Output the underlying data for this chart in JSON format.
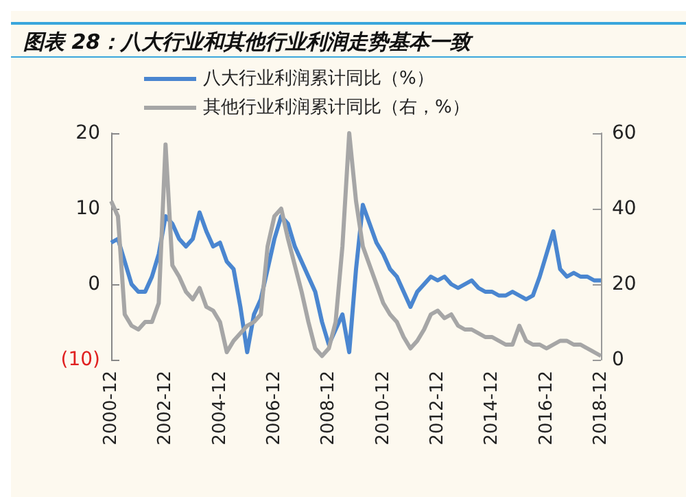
{
  "chart_data": {
    "type": "line",
    "title": "图表 28：八大行业和其他行业利润走势基本一致",
    "categories": [
      "2000-12",
      null,
      null,
      null,
      null,
      null,
      null,
      null,
      "2002-12",
      null,
      null,
      null,
      null,
      null,
      null,
      null,
      "2004-12",
      null,
      null,
      null,
      null,
      null,
      null,
      null,
      "2006-12",
      null,
      null,
      null,
      null,
      null,
      null,
      null,
      "2008-12",
      null,
      null,
      null,
      null,
      null,
      null,
      null,
      "2010-12",
      null,
      null,
      null,
      null,
      null,
      null,
      null,
      "2012-12",
      null,
      null,
      null,
      null,
      null,
      null,
      null,
      "2014-12",
      null,
      null,
      null,
      null,
      null,
      null,
      null,
      "2016-12",
      null,
      null,
      null,
      null,
      null,
      null,
      null,
      "2018-12"
    ],
    "series": [
      {
        "name": "八大行业利润累计同比（%）",
        "color": "#4a86d0",
        "values": [
          5.5,
          6,
          3,
          0,
          -1,
          -1,
          1,
          4,
          9,
          8,
          6,
          5,
          6,
          9.5,
          7,
          5,
          5.5,
          3,
          2,
          -3,
          -9,
          -4,
          -2,
          2,
          6,
          9,
          8,
          5,
          3,
          1,
          -1,
          -5,
          -8,
          -6,
          -4,
          -9,
          2,
          10.5,
          8,
          5.5,
          4,
          2,
          1,
          -1,
          -3,
          -1,
          0,
          1,
          0.5,
          1,
          0,
          -0.5,
          0,
          0.5,
          -0.5,
          -1,
          -1,
          -1.5,
          -1.5,
          -1,
          -1.5,
          -2,
          -1.5,
          1,
          4,
          7,
          2,
          1,
          1.5,
          1,
          1,
          0.5,
          0.5
        ]
      },
      {
        "name": "其他行业利润累计同比（右，%）",
        "color": "#a6a6a6",
        "axis": "y2",
        "values": [
          42,
          38,
          12,
          9,
          8,
          10,
          10,
          15,
          57,
          25,
          22,
          18,
          16,
          19,
          14,
          13,
          10,
          2,
          5,
          7,
          9,
          10,
          12,
          30,
          38,
          40,
          32,
          25,
          18,
          10,
          3,
          1,
          3,
          10,
          30,
          60,
          42,
          30,
          25,
          20,
          15,
          12,
          10,
          6,
          3,
          5,
          8,
          12,
          13,
          11,
          12,
          9,
          8,
          8,
          7,
          6,
          6,
          5,
          4,
          4,
          9,
          5,
          4,
          4,
          3,
          4,
          5,
          5,
          4,
          4,
          3,
          2,
          1
        ]
      }
    ],
    "ylim": [
      -10,
      20
    ],
    "yticks": [
      {
        "value": -10,
        "label": "(10)"
      },
      0,
      10,
      20
    ],
    "y2lim": [
      0,
      60
    ],
    "y2ticks": [
      0,
      20,
      40,
      60
    ],
    "legend": "top",
    "grid": false,
    "marker": "none",
    "line_style": "solid"
  }
}
